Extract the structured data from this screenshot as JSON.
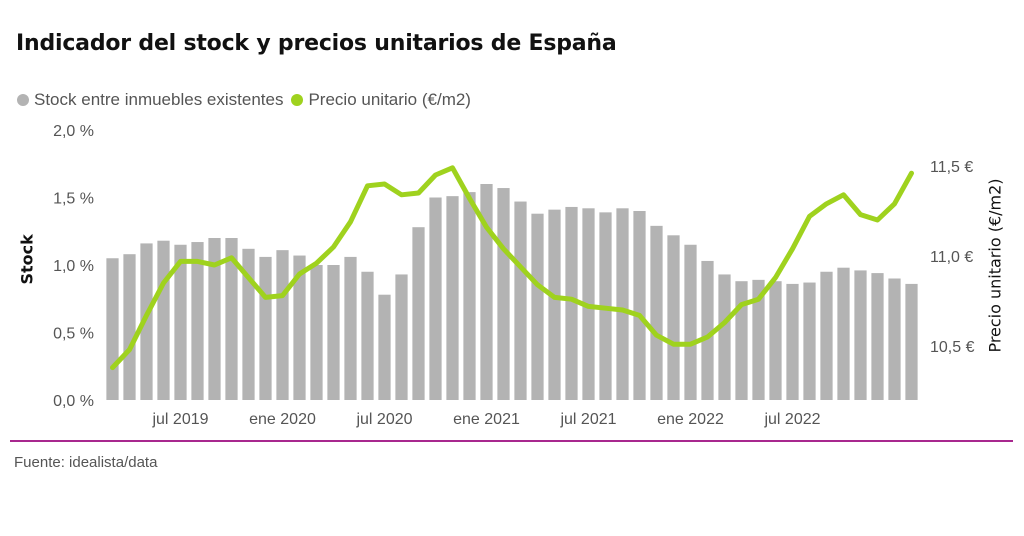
{
  "chart_data": {
    "type": "bar",
    "title": "Indicador del stock y precios unitarios de España",
    "source": "Fuente: idealista/data",
    "ylabel_left": "Stock",
    "ylabel_right": "Precio unitario (€/m2)",
    "legend_position": "top-left",
    "grid": false,
    "colors": {
      "bars": "#b3b3b3",
      "line": "#9fd21e",
      "divider": "#a8288e",
      "legend_text": "#555555"
    },
    "ylim_left": [
      0,
      2
    ],
    "ylim_right": [
      10.2,
      11.7
    ],
    "y_ticks_left": [
      {
        "value": 0,
        "label": "0,0 %"
      },
      {
        "value": 0.5,
        "label": "0,5 %"
      },
      {
        "value": 1.0,
        "label": "1,0 %"
      },
      {
        "value": 1.5,
        "label": "1,5 %"
      },
      {
        "value": 2.0,
        "label": "2,0 %"
      }
    ],
    "y_ticks_right": [
      {
        "value": 10.5,
        "label": "10,5 €"
      },
      {
        "value": 11.0,
        "label": "11,0 €"
      },
      {
        "value": 11.5,
        "label": "11,5 €"
      }
    ],
    "x_ticks": [
      {
        "index": 4.5,
        "label": "jul 2019"
      },
      {
        "index": 10.5,
        "label": "ene 2020"
      },
      {
        "index": 16.5,
        "label": "jul 2020"
      },
      {
        "index": 22.5,
        "label": "ene 2021"
      },
      {
        "index": 28.5,
        "label": "jul 2021"
      },
      {
        "index": 34.5,
        "label": "ene 2022"
      },
      {
        "index": 40.5,
        "label": "jul 2022"
      }
    ],
    "series": [
      {
        "name": "Stock entre inmuebles existentes",
        "kind": "bar",
        "axis": "left",
        "values": [
          1.05,
          1.08,
          1.16,
          1.18,
          1.15,
          1.17,
          1.2,
          1.2,
          1.12,
          1.06,
          1.11,
          1.07,
          1.0,
          1.0,
          1.06,
          0.95,
          0.78,
          0.93,
          1.28,
          1.5,
          1.51,
          1.54,
          1.6,
          1.57,
          1.47,
          1.38,
          1.41,
          1.43,
          1.42,
          1.39,
          1.42,
          1.4,
          1.29,
          1.22,
          1.15,
          1.03,
          0.93,
          0.88,
          0.89,
          0.88,
          0.86,
          0.87,
          0.95,
          0.98,
          0.96,
          0.94,
          0.9,
          0.86
        ]
      },
      {
        "name": "Precio unitario (€/m2)",
        "kind": "line",
        "axis": "right",
        "values": [
          10.38,
          10.48,
          10.67,
          10.85,
          10.97,
          10.97,
          10.95,
          10.99,
          10.88,
          10.77,
          10.78,
          10.9,
          10.96,
          11.05,
          11.19,
          11.39,
          11.4,
          11.34,
          11.35,
          11.45,
          11.49,
          11.32,
          11.16,
          11.04,
          10.94,
          10.84,
          10.77,
          10.76,
          10.72,
          10.71,
          10.7,
          10.67,
          10.56,
          10.51,
          10.51,
          10.55,
          10.63,
          10.73,
          10.76,
          10.88,
          11.04,
          11.22,
          11.29,
          11.34,
          11.23,
          11.2,
          11.29,
          11.46
        ]
      }
    ]
  }
}
